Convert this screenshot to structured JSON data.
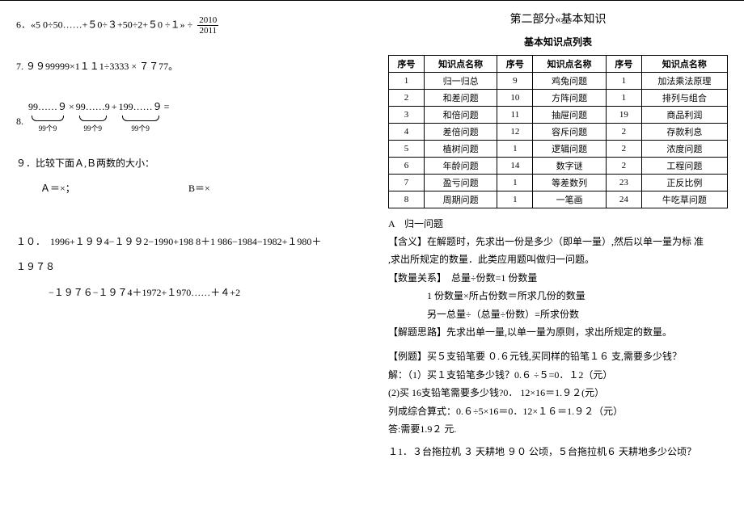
{
  "left": {
    "q6": "6．«5 0÷50……+５0÷３+50÷2+５0 ÷１»   ÷",
    "q6_frac_num": "2010",
    "q6_frac_den": "2011",
    "q7": "7.   ９９99999×1１１1÷3333 × ７７77。",
    "q8_num": "8.",
    "q8_a_top": "99……９",
    "q8_a_lab": "99个9",
    "q8_b_top": "99……9",
    "q8_b_lab": "99个9",
    "q8_c_top": "199……９",
    "q8_c_lab": "99个9",
    "q8_eq": " =",
    "q8_times": " × ",
    "q8_plus": " + ",
    "q9a": "９．比较下面Ａ,Ｂ两数的大小：",
    "q9b": "Ａ＝×；",
    "q9c": "B＝×",
    "q10a": "１０．　1996+１９９4−１９９2−1990+198 8＋1 986−1984−1982+１980＋",
    "q10b": "１９７８",
    "q10c": "−１９７６−１９７4＋1972+１970……＋４+2"
  },
  "right": {
    "title": "第二部分«基本知识",
    "subtitle": "基本知识点列表",
    "table": {
      "headers": [
        "序号",
        "知识点名称",
        "序号",
        "知识点名称",
        "序号",
        "知识点名称"
      ],
      "rows": [
        [
          "1",
          "归一归总",
          "9",
          "鸡兔问题",
          "1",
          "加法乘法原理"
        ],
        [
          "2",
          "和差问题",
          "10",
          "方阵问题",
          "1",
          "排列与组合"
        ],
        [
          "3",
          "和倍问题",
          "11",
          "抽屉问题",
          "19",
          "商品利润"
        ],
        [
          "4",
          "差倍问题",
          "12",
          "容斥问题",
          "2",
          "存款利息"
        ],
        [
          "5",
          "植树问题",
          "1",
          "逻辑问题",
          "2",
          "浓度问题"
        ],
        [
          "6",
          "年龄问题",
          "14",
          "数字谜",
          "2",
          "工程问题"
        ],
        [
          "7",
          "盈亏问题",
          "1",
          "等差数列",
          "23",
          "正反比例"
        ],
        [
          "8",
          "周期问题",
          "1",
          "一笔画",
          "24",
          "牛吃草问题"
        ]
      ]
    },
    "sectA": "A　归一问题",
    "p1": "【含义】在解题时，先求出一份是多少（即单一量）,然后以单一量为标 准",
    "p1b": ",求出所规定的数量．此类应用题叫做归一问题。",
    "p2": "【数量关系】　总量÷份数=1 份数量",
    "p3": "1 份数量×所占份数＝所求几份的数量",
    "p4": "另一总量÷（总量÷份数）=所求份数",
    "p5": "【解题思路】先求出单一量,以单一量为原则，求出所规定的数量。",
    "p6": "【例题】买５支铅笔要 ０.６元钱,买同样的铅笔１６ 支,需要多少钱？",
    "p7": " 解：（1）买１支铅笔多少钱？0.６ ÷５=0．１2（元）",
    "p8": "(2)买 16支铅笔需要多少钱?0． 12×16＝1.９２(元）",
    "p9": "列成综合算式：0.６÷5×16＝0．12×１６＝1.９２（元）",
    "p10": "答:需要1.9２  元.",
    "p11": "１1．３台拖拉机 ３ 天耕地 ９０ 公顷，５台拖拉机６  天耕地多少公顷？"
  }
}
